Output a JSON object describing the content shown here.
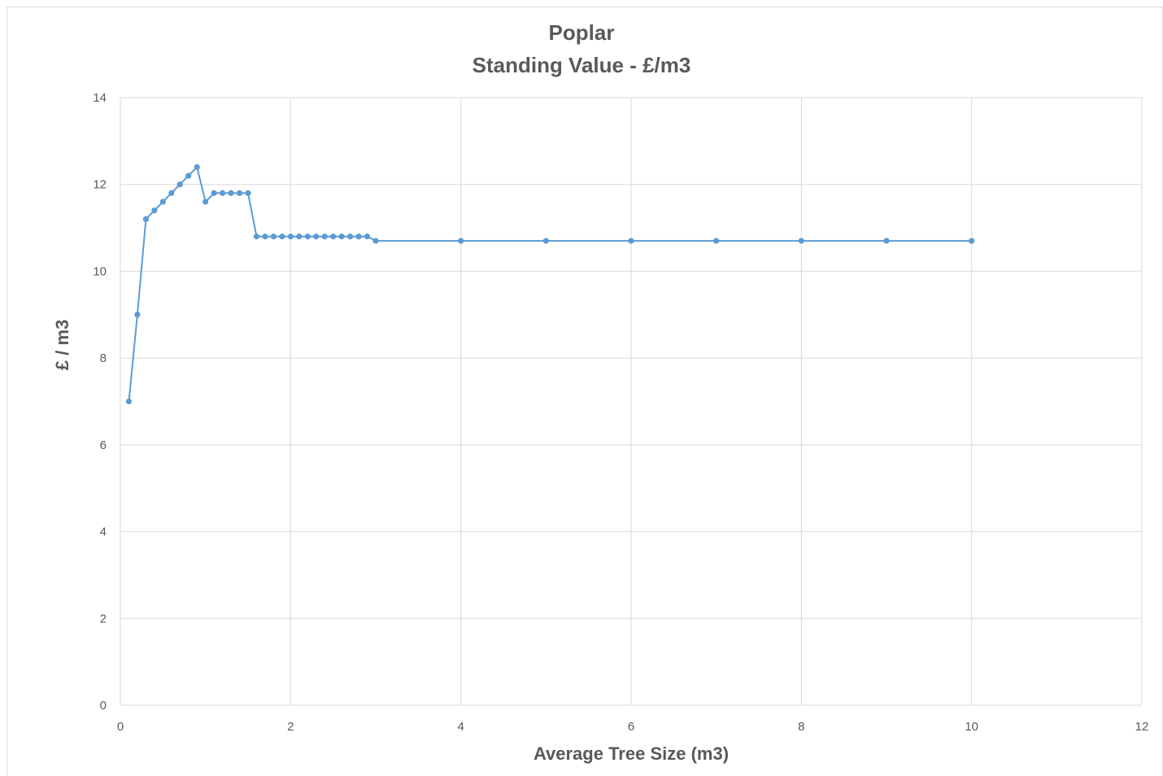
{
  "chart_data": {
    "type": "line",
    "title": "Poplar",
    "subtitle": "Standing Value - £/m3",
    "xlabel": "Average  Tree Size (m3)",
    "ylabel": "£ / m3",
    "xlim": [
      0,
      12
    ],
    "ylim": [
      0,
      14
    ],
    "x_ticks": [
      "0",
      "2",
      "4",
      "6",
      "8",
      "10",
      "12"
    ],
    "y_ticks": [
      "0",
      "2",
      "4",
      "6",
      "8",
      "10",
      "12",
      "14"
    ],
    "grid": true,
    "markers": true,
    "series_color": "#5b9bd5",
    "gridline_color": "#d9d9d9",
    "series": [
      {
        "x": [
          0.1,
          0.2,
          0.3,
          0.4,
          0.5,
          0.6,
          0.7,
          0.8,
          0.9,
          1.0,
          1.1,
          1.2,
          1.3,
          1.4,
          1.5,
          1.6,
          1.7,
          1.8,
          1.9,
          2.0,
          2.1,
          2.2,
          2.3,
          2.4,
          2.5,
          2.6,
          2.7,
          2.8,
          2.9,
          3.0,
          4.0,
          5.0,
          6.0,
          7.0,
          8.0,
          9.0,
          10.0
        ],
        "values": [
          7.0,
          9.0,
          11.2,
          11.4,
          11.6,
          11.8,
          12.0,
          12.2,
          12.4,
          11.6,
          11.8,
          11.8,
          11.8,
          11.8,
          11.8,
          10.8,
          10.8,
          10.8,
          10.8,
          10.8,
          10.8,
          10.8,
          10.8,
          10.8,
          10.8,
          10.8,
          10.8,
          10.8,
          10.8,
          10.7,
          10.7,
          10.7,
          10.7,
          10.7,
          10.7,
          10.7,
          10.7
        ]
      }
    ]
  }
}
